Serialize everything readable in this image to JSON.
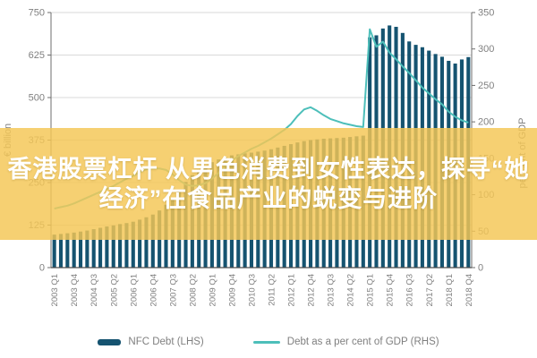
{
  "overlay": {
    "line1": "香港股票杠杆 从男色消费到女性表达，探寻“她",
    "line2": "经济”在食品产业的蜕变与进阶",
    "band_color": "rgba(244,198,86,0.83)"
  },
  "chart_data": {
    "type": "bar",
    "x": [
      "2003 Q1",
      "2003 Q2",
      "2003 Q3",
      "2003 Q4",
      "2004 Q1",
      "2004 Q2",
      "2004 Q3",
      "2004 Q4",
      "2005 Q1",
      "2005 Q2",
      "2005 Q3",
      "2005 Q4",
      "2006 Q1",
      "2006 Q2",
      "2006 Q3",
      "2006 Q4",
      "2007 Q1",
      "2007 Q2",
      "2007 Q3",
      "2007 Q4",
      "2008 Q1",
      "2008 Q2",
      "2008 Q3",
      "2008 Q4",
      "2009 Q1",
      "2009 Q2",
      "2009 Q3",
      "2009 Q4",
      "2010 Q1",
      "2010 Q2",
      "2010 Q3",
      "2010 Q4",
      "2011 Q1",
      "2011 Q2",
      "2011 Q3",
      "2011 Q4",
      "2012 Q1",
      "2012 Q2",
      "2012 Q3",
      "2012 Q4",
      "2013 Q1",
      "2013 Q2",
      "2013 Q3",
      "2013 Q4",
      "2014 Q1",
      "2014 Q2",
      "2014 Q3",
      "2014 Q4",
      "2015 Q1",
      "2015 Q2",
      "2015 Q3",
      "2015 Q4",
      "2016 Q1",
      "2016 Q2",
      "2016 Q3",
      "2016 Q4",
      "2017 Q1",
      "2017 Q2",
      "2017 Q3",
      "2017 Q4",
      "2018 Q1",
      "2018 Q2",
      "2018 Q3",
      "2018 Q4"
    ],
    "x_tick_every": 3,
    "series": [
      {
        "name": "NFC Debt (LHS)",
        "type": "bar",
        "axis": "left",
        "color": "#155370",
        "values": [
          97,
          99,
          101,
          103,
          106,
          109,
          113,
          117,
          121,
          124,
          128,
          131,
          135,
          141,
          148,
          156,
          168,
          185,
          205,
          228,
          252,
          272,
          288,
          300,
          310,
          318,
          325,
          330,
          333,
          336,
          338,
          341,
          344,
          348,
          353,
          358,
          363,
          368,
          372,
          375,
          377,
          379,
          380,
          381,
          382,
          384,
          386,
          388,
          677,
          683,
          703,
          712,
          708,
          690,
          665,
          655,
          648,
          638,
          628,
          620,
          608,
          600,
          612,
          619
        ]
      },
      {
        "name": "Debt as a per cent of GDP (RHS)",
        "type": "line",
        "axis": "right",
        "color": "#4dbfba",
        "values": [
          81,
          83,
          85,
          88,
          92,
          96,
          100,
          104,
          108,
          112,
          117,
          122,
          126,
          131,
          135,
          136,
          136,
          134,
          128,
          120,
          114,
          112,
          113,
          116,
          122,
          130,
          139,
          147,
          153,
          158,
          163,
          167,
          172,
          177,
          183,
          189,
          197,
          208,
          217,
          220,
          215,
          209,
          204,
          201,
          198,
          196,
          194,
          193,
          327,
          303,
          310,
          295,
          286,
          276,
          267,
          257,
          247,
          239,
          231,
          224,
          214,
          207,
          202,
          199
        ]
      }
    ],
    "left_axis": {
      "label": "€ billion",
      "min": 0,
      "max": 750,
      "step": 125,
      "ticks": [
        0,
        125,
        250,
        375,
        500,
        625,
        750
      ]
    },
    "right_axis": {
      "label": "per cent of GDP",
      "min": 0,
      "max": 350,
      "step": 50,
      "ticks": [
        0,
        50,
        100,
        150,
        200,
        250,
        300,
        350
      ]
    },
    "grid": true,
    "legend_position": "bottom",
    "colors": {
      "grid": "#d9d9d9",
      "spine": "#6e6e6e",
      "baseline": "#4d4d4d",
      "tick_text": "#808080"
    }
  },
  "legend": {
    "bar_label": "NFC Debt (LHS)",
    "line_label": "Debt as a per cent of GDP (RHS)"
  }
}
